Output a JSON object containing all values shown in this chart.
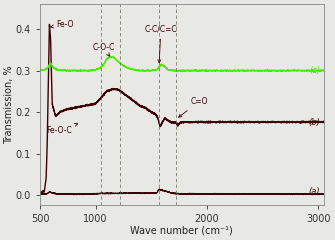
{
  "xlabel": "Wave number (cm⁻¹)",
  "ylabel": "Transmission, %",
  "xlim": [
    500,
    3050
  ],
  "ylim": [
    -0.025,
    0.46
  ],
  "xticks": [
    500,
    1000,
    2000,
    3000
  ],
  "yticks": [
    0.0,
    0.1,
    0.2,
    0.3,
    0.4
  ],
  "color_dark": "#3d0005",
  "color_green": "#44ee00",
  "dashed_lines": [
    1050,
    1220,
    1570,
    1720
  ],
  "dashed_color": "#666655",
  "bg_color": "#e8e8e4",
  "label_c": "(c)",
  "label_b": "(b)",
  "label_a": "(a)",
  "anno_fontsize": 5.5,
  "tick_fontsize": 7,
  "axis_fontsize": 7
}
